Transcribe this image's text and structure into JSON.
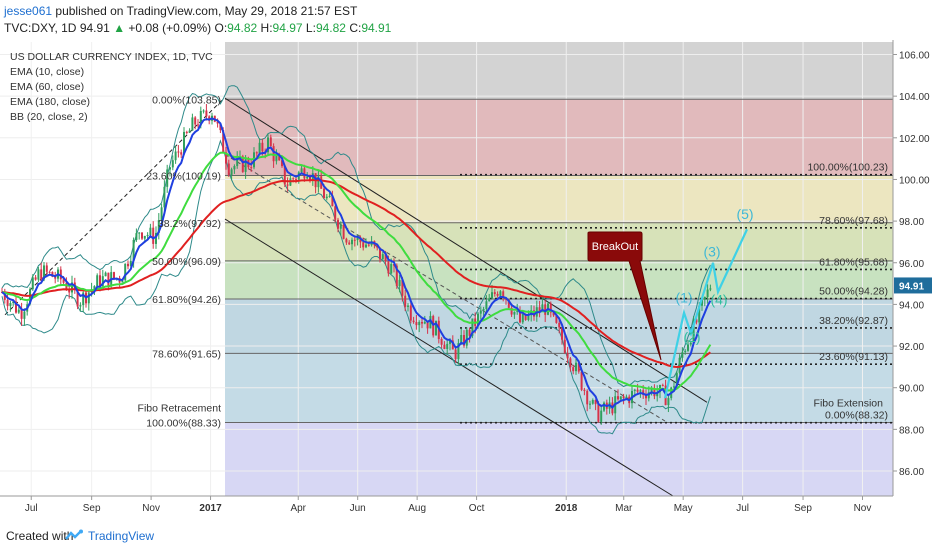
{
  "header": {
    "author": "jesse061",
    "published": "published on TradingView.com, May 29, 2018 21:57 EST",
    "symbol": "TVC:DXY, 1D",
    "last": "94.91",
    "change": "+0.08 (+0.09%)",
    "o_label": "O:",
    "o_value": "94.82",
    "h_label": "H:",
    "h_value": "94.97",
    "l_label": "L:",
    "l_value": "94.82",
    "c_label": "C:",
    "c_value": "94.91"
  },
  "legend": {
    "title": "US DOLLAR CURRENCY INDEX, 1D, TVC",
    "ema10": "EMA (10, close)",
    "ema60": "EMA (60, close)",
    "ema180": "EMA (180, close)",
    "bb": "BB (20, close, 2)"
  },
  "footer": {
    "created": "Created with",
    "brand": "TradingView"
  },
  "colors": {
    "candle_up": "#2f9f5d",
    "candle_down": "#d6324a",
    "ema10": "#1f3fe0",
    "ema60": "#3fdc3f",
    "ema180": "#e02020",
    "bb": "#2e8a8a",
    "price_badge": "#1f6d9c",
    "projection": "#3fd1e6"
  },
  "chart_data": {
    "type": "candlestick",
    "symbol": "TVC:DXY",
    "timeframe": "1D",
    "y_axis": {
      "min": 84.8,
      "max": 106.6,
      "ticks": [
        "86.00",
        "88.00",
        "90.00",
        "92.00",
        "94.00",
        "96.00",
        "98.00",
        "100.00",
        "102.00",
        "104.00",
        "106.00"
      ]
    },
    "x_axis": {
      "ticks": [
        "Jul",
        "Sep",
        "Nov",
        "2017",
        "Apr",
        "Jun",
        "Aug",
        "Oct",
        "2018",
        "Mar",
        "May",
        "Jul",
        "Sep",
        "Nov"
      ]
    },
    "last_price": "94.91",
    "price_path": [
      [
        "2016-06-01",
        94.6
      ],
      [
        "2016-06-20",
        93.6
      ],
      [
        "2016-07-10",
        95.6
      ],
      [
        "2016-08-01",
        95.2
      ],
      [
        "2016-08-20",
        94.2
      ],
      [
        "2016-09-10",
        95.2
      ],
      [
        "2016-10-01",
        95.3
      ],
      [
        "2016-10-20",
        97.6
      ],
      [
        "2016-11-05",
        97.2
      ],
      [
        "2016-11-20",
        100.6
      ],
      [
        "2016-12-15",
        102.7
      ],
      [
        "2017-01-03",
        103.3
      ],
      [
        "2017-01-20",
        100.6
      ],
      [
        "2017-02-10",
        100.8
      ],
      [
        "2017-03-01",
        101.8
      ],
      [
        "2017-03-20",
        99.8
      ],
      [
        "2017-04-10",
        100.6
      ],
      [
        "2017-05-01",
        99.0
      ],
      [
        "2017-05-20",
        97.3
      ],
      [
        "2017-06-15",
        96.8
      ],
      [
        "2017-07-05",
        95.8
      ],
      [
        "2017-07-25",
        93.6
      ],
      [
        "2017-08-15",
        93.1
      ],
      [
        "2017-09-08",
        91.6
      ],
      [
        "2017-09-25",
        92.8
      ],
      [
        "2017-10-25",
        94.9
      ],
      [
        "2017-11-15",
        93.1
      ],
      [
        "2017-12-10",
        93.9
      ],
      [
        "2017-12-28",
        92.3
      ],
      [
        "2018-01-20",
        89.9
      ],
      [
        "2018-02-01",
        88.7
      ],
      [
        "2018-02-20",
        89.2
      ],
      [
        "2018-03-15",
        89.8
      ],
      [
        "2018-04-01",
        89.9
      ],
      [
        "2018-04-17",
        89.5
      ],
      [
        "2018-05-01",
        91.8
      ],
      [
        "2018-05-15",
        93.2
      ],
      [
        "2018-05-29",
        94.91
      ]
    ],
    "fibo_retracement": {
      "label": "Fibo Retracement",
      "levels": [
        {
          "label": "0.00%(103.85)",
          "value": 103.85
        },
        {
          "label": "23.60%(100.19)",
          "value": 100.19
        },
        {
          "label": "38.2%(97.92)",
          "value": 97.92
        },
        {
          "label": "50.00%(96.09)",
          "value": 96.09
        },
        {
          "label": "61.80%(94.26)",
          "value": 94.26
        },
        {
          "label": "78.60%(91.65)",
          "value": 91.65
        },
        {
          "label": "100.00%(88.33)",
          "value": 88.33
        }
      ]
    },
    "fibo_extension": {
      "label": "Fibo Extension",
      "levels": [
        {
          "label": "100.00%(100.23)",
          "value": 100.23
        },
        {
          "label": "78.60%(97.68)",
          "value": 97.68
        },
        {
          "label": "61.80%(95.68)",
          "value": 95.68
        },
        {
          "label": "50.00%(94.28)",
          "value": 94.28
        },
        {
          "label": "38.20%(92.87)",
          "value": 92.87
        },
        {
          "label": "23.60%(91.13)",
          "value": 91.13
        },
        {
          "label": "0.00%(88.32)",
          "value": 88.32
        }
      ]
    },
    "annotations": {
      "breakout": "BreakOut",
      "waves": [
        "(1)",
        "(2)",
        "(3)",
        "(4)",
        "(5)"
      ]
    }
  }
}
